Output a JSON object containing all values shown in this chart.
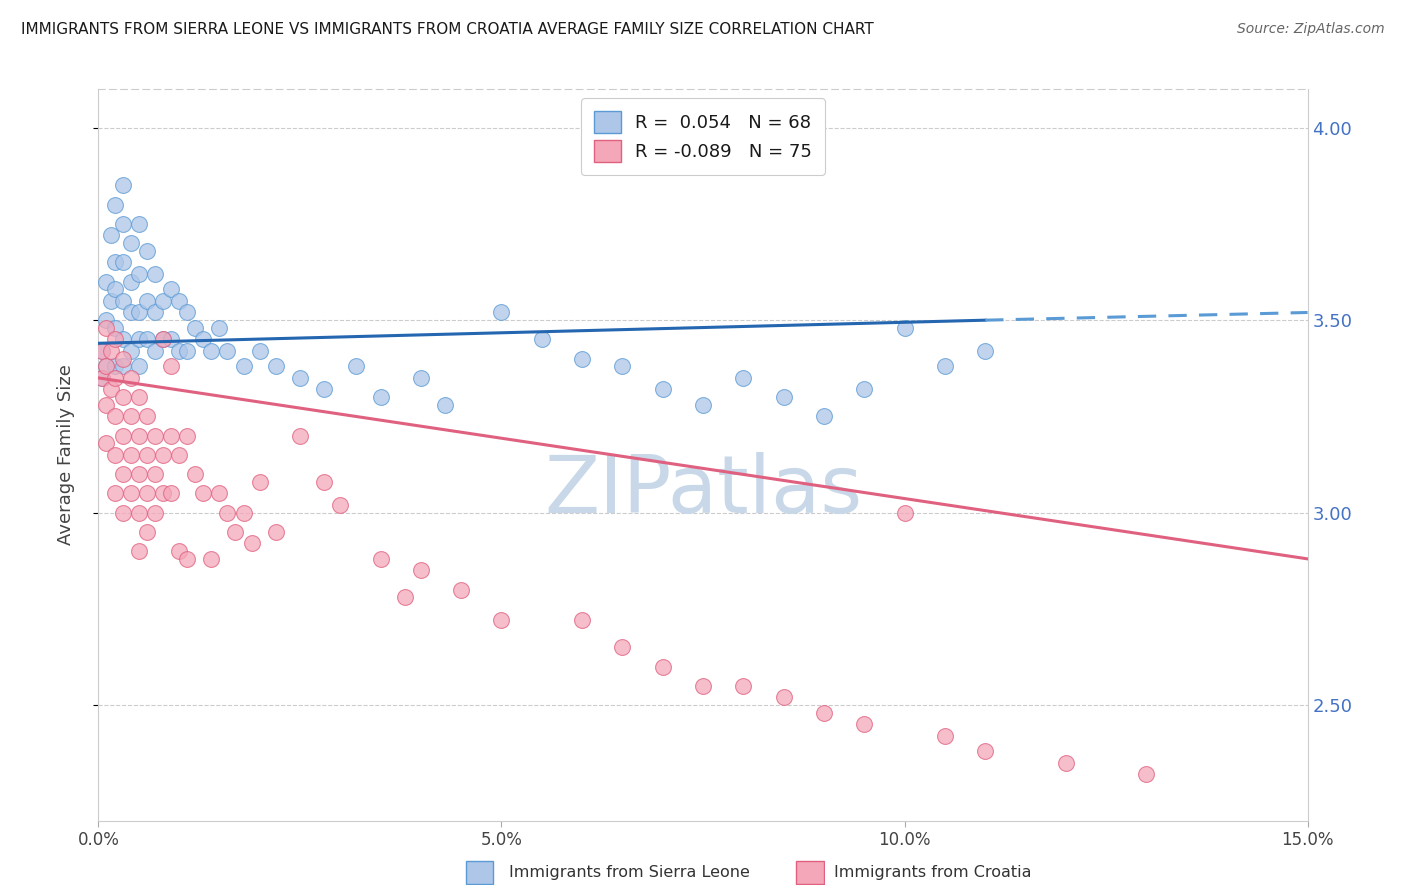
{
  "title": "IMMIGRANTS FROM SIERRA LEONE VS IMMIGRANTS FROM CROATIA AVERAGE FAMILY SIZE CORRELATION CHART",
  "source": "Source: ZipAtlas.com",
  "ylabel": "Average Family Size",
  "xlim": [
    0.0,
    0.15
  ],
  "ylim": [
    2.2,
    4.1
  ],
  "yticks": [
    2.5,
    3.0,
    3.5,
    4.0
  ],
  "xticks": [
    0.0,
    0.05,
    0.1,
    0.15
  ],
  "xticklabels": [
    "0.0%",
    "5.0%",
    "10.0%",
    "15.0%"
  ],
  "sierra_leone_color_face": "#aec6e8",
  "sierra_leone_color_edge": "#5b9bd5",
  "croatia_color_face": "#f4a7b9",
  "croatia_color_edge": "#e06080",
  "trend_sierra_color": "#2566b0",
  "trend_croatia_color": "#e06080",
  "dashed_extend_color": "#5b9bd5",
  "background_color": "#ffffff",
  "grid_color": "#cccccc",
  "right_axis_color": "#4472c4",
  "legend_R_sierra": " 0.054",
  "legend_N_sierra": "68",
  "legend_R_croatia": "-0.089",
  "legend_N_croatia": "75",
  "watermark": "ZIPatlas",
  "watermark_color": "#c8d8e8",
  "sierra_leone_x": [
    0.0005,
    0.0005,
    0.001,
    0.001,
    0.001,
    0.0015,
    0.0015,
    0.002,
    0.002,
    0.002,
    0.002,
    0.002,
    0.003,
    0.003,
    0.003,
    0.003,
    0.003,
    0.003,
    0.004,
    0.004,
    0.004,
    0.004,
    0.005,
    0.005,
    0.005,
    0.005,
    0.005,
    0.006,
    0.006,
    0.006,
    0.007,
    0.007,
    0.007,
    0.008,
    0.008,
    0.009,
    0.009,
    0.01,
    0.01,
    0.011,
    0.011,
    0.012,
    0.013,
    0.014,
    0.015,
    0.016,
    0.018,
    0.02,
    0.022,
    0.025,
    0.028,
    0.032,
    0.035,
    0.04,
    0.043,
    0.05,
    0.055,
    0.06,
    0.065,
    0.07,
    0.075,
    0.08,
    0.085,
    0.09,
    0.095,
    0.1,
    0.105,
    0.11
  ],
  "sierra_leone_y": [
    3.42,
    3.35,
    3.6,
    3.5,
    3.38,
    3.72,
    3.55,
    3.8,
    3.65,
    3.58,
    3.48,
    3.38,
    3.85,
    3.75,
    3.65,
    3.55,
    3.45,
    3.38,
    3.7,
    3.6,
    3.52,
    3.42,
    3.75,
    3.62,
    3.52,
    3.45,
    3.38,
    3.68,
    3.55,
    3.45,
    3.62,
    3.52,
    3.42,
    3.55,
    3.45,
    3.58,
    3.45,
    3.55,
    3.42,
    3.52,
    3.42,
    3.48,
    3.45,
    3.42,
    3.48,
    3.42,
    3.38,
    3.42,
    3.38,
    3.35,
    3.32,
    3.38,
    3.3,
    3.35,
    3.28,
    3.52,
    3.45,
    3.4,
    3.38,
    3.32,
    3.28,
    3.35,
    3.3,
    3.25,
    3.32,
    3.48,
    3.38,
    3.42
  ],
  "croatia_x": [
    0.0005,
    0.0005,
    0.001,
    0.001,
    0.001,
    0.001,
    0.0015,
    0.0015,
    0.002,
    0.002,
    0.002,
    0.002,
    0.002,
    0.003,
    0.003,
    0.003,
    0.003,
    0.003,
    0.004,
    0.004,
    0.004,
    0.004,
    0.005,
    0.005,
    0.005,
    0.005,
    0.005,
    0.006,
    0.006,
    0.006,
    0.006,
    0.007,
    0.007,
    0.007,
    0.008,
    0.008,
    0.008,
    0.009,
    0.009,
    0.009,
    0.01,
    0.01,
    0.011,
    0.011,
    0.012,
    0.013,
    0.014,
    0.015,
    0.016,
    0.017,
    0.018,
    0.019,
    0.02,
    0.022,
    0.025,
    0.028,
    0.03,
    0.035,
    0.038,
    0.04,
    0.045,
    0.05,
    0.06,
    0.065,
    0.07,
    0.075,
    0.08,
    0.085,
    0.09,
    0.095,
    0.1,
    0.105,
    0.11,
    0.12,
    0.13
  ],
  "croatia_y": [
    3.42,
    3.35,
    3.48,
    3.38,
    3.28,
    3.18,
    3.42,
    3.32,
    3.45,
    3.35,
    3.25,
    3.15,
    3.05,
    3.4,
    3.3,
    3.2,
    3.1,
    3.0,
    3.35,
    3.25,
    3.15,
    3.05,
    3.3,
    3.2,
    3.1,
    3.0,
    2.9,
    3.25,
    3.15,
    3.05,
    2.95,
    3.2,
    3.1,
    3.0,
    3.45,
    3.15,
    3.05,
    3.38,
    3.2,
    3.05,
    3.15,
    2.9,
    3.2,
    2.88,
    3.1,
    3.05,
    2.88,
    3.05,
    3.0,
    2.95,
    3.0,
    2.92,
    3.08,
    2.95,
    3.2,
    3.08,
    3.02,
    2.88,
    2.78,
    2.85,
    2.8,
    2.72,
    2.72,
    2.65,
    2.6,
    2.55,
    2.55,
    2.52,
    2.48,
    2.45,
    3.0,
    2.42,
    2.38,
    2.35,
    2.32
  ],
  "trend_sl_x0": 0.0,
  "trend_sl_x1": 0.11,
  "trend_sl_y0": 3.44,
  "trend_sl_y1": 3.5,
  "trend_sl_dash_x0": 0.11,
  "trend_sl_dash_x1": 0.15,
  "trend_sl_dash_y0": 3.5,
  "trend_sl_dash_y1": 3.52,
  "trend_cr_x0": 0.0,
  "trend_cr_x1": 0.15,
  "trend_cr_y0": 3.35,
  "trend_cr_y1": 2.88
}
